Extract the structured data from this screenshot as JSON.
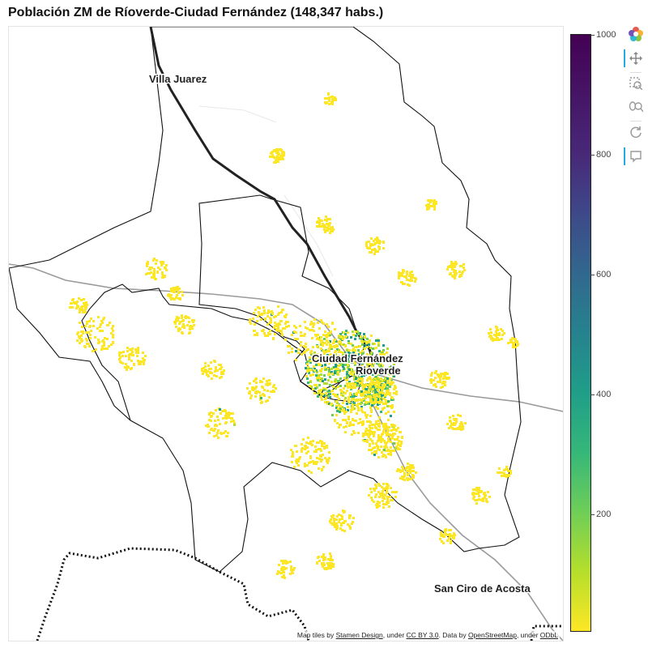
{
  "title": "Población ZM de Ríoverde-Ciudad Fernández (148,347 habs.)",
  "map": {
    "place_labels": [
      {
        "id": "villa-juarez",
        "text": "Villa Juarez"
      },
      {
        "id": "ciudad-fernandez",
        "text": "Ciudad Fernández"
      },
      {
        "id": "rioverde",
        "text": "Rioverde"
      },
      {
        "id": "san-ciro",
        "text": "San Ciro de Acosta"
      }
    ],
    "attribution": {
      "prefix": "Map tiles by ",
      "stamen": "Stamen Design",
      "mid1": ", under ",
      "ccby": "CC BY 3.0",
      "mid2": ". Data by ",
      "osm": "OpenStreetMap",
      "mid3": ", under ",
      "odbl": "ODbL"
    }
  },
  "colorbar": {
    "min": 0,
    "max": 1000,
    "ticks": [
      "200",
      "400",
      "600",
      "800",
      "1000"
    ],
    "palette": [
      "#fde725",
      "#b5de2b",
      "#6ece58",
      "#35b779",
      "#1f9e89",
      "#26828e",
      "#31688e",
      "#3e4989",
      "#482878",
      "#440154"
    ]
  },
  "toolbar": [
    {
      "name": "bokeh-logo-icon"
    },
    {
      "name": "pan-tool-icon",
      "active": true
    },
    {
      "name": "box-zoom-tool-icon"
    },
    {
      "name": "wheel-zoom-tool-icon"
    },
    {
      "name": "reset-tool-icon"
    },
    {
      "name": "hover-tool-icon",
      "active": true
    }
  ]
}
